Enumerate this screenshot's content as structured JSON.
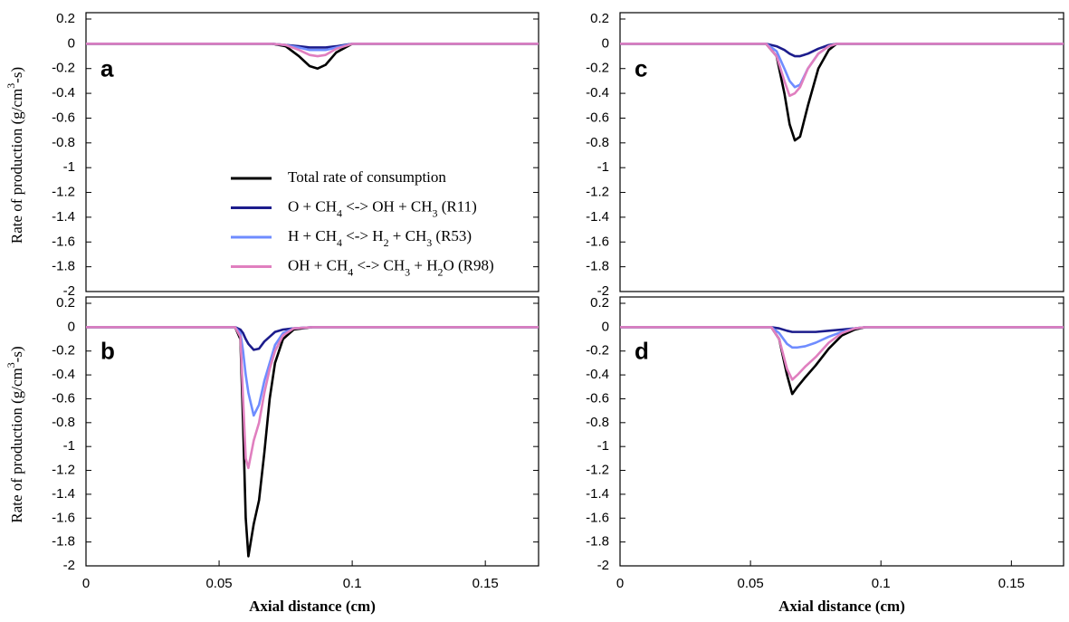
{
  "chart_data": [
    {
      "type": "line",
      "label": "a",
      "ylabel": "Rate of production (g/cm3-s)",
      "x": [
        0,
        0.07,
        0.075,
        0.08,
        0.084,
        0.087,
        0.09,
        0.094,
        0.1,
        0.17
      ],
      "series": [
        {
          "name": "Total rate of consumption",
          "color": "#000000",
          "values": [
            0,
            0,
            -0.02,
            -0.1,
            -0.18,
            -0.2,
            -0.17,
            -0.07,
            0,
            0
          ]
        },
        {
          "name": "O + CH4 <-> OH + CH3 (R11)",
          "color": "#1c1c8c",
          "values": [
            0,
            0,
            -0.01,
            -0.02,
            -0.03,
            -0.03,
            -0.03,
            -0.02,
            0,
            0
          ]
        },
        {
          "name": "H + CH4 <-> H2 + CH3 (R53)",
          "color": "#6f8cff",
          "values": [
            0,
            0,
            -0.01,
            -0.03,
            -0.05,
            -0.05,
            -0.05,
            -0.03,
            0,
            0
          ]
        },
        {
          "name": "OH + CH4 <-> CH3 + H2O (R98)",
          "color": "#e07fbf",
          "values": [
            0,
            0,
            -0.01,
            -0.05,
            -0.09,
            -0.1,
            -0.09,
            -0.04,
            0,
            0
          ]
        }
      ],
      "xlim": [
        0,
        0.17
      ],
      "ylim": [
        -2,
        0.2
      ],
      "yticks": [
        0.2,
        0,
        -0.2,
        -0.4,
        -0.6,
        -0.8,
        -1,
        -1.2,
        -1.4,
        -1.6,
        -1.8,
        -2
      ]
    },
    {
      "type": "line",
      "label": "b",
      "ylabel": "Rate of production (g/cm3-s)",
      "xlabel": "Axial distance (cm)",
      "x": [
        0,
        0.056,
        0.058,
        0.059,
        0.06,
        0.061,
        0.063,
        0.065,
        0.067,
        0.069,
        0.071,
        0.074,
        0.078,
        0.085,
        0.17
      ],
      "series": [
        {
          "color": "#000000",
          "values": [
            0,
            0,
            -0.1,
            -0.8,
            -1.6,
            -1.92,
            -1.65,
            -1.45,
            -1.05,
            -0.6,
            -0.3,
            -0.1,
            -0.02,
            0,
            0
          ]
        },
        {
          "color": "#1c1c8c",
          "values": [
            0,
            0,
            -0.02,
            -0.05,
            -0.1,
            -0.14,
            -0.19,
            -0.18,
            -0.12,
            -0.08,
            -0.04,
            -0.02,
            -0.01,
            0,
            0
          ]
        },
        {
          "color": "#6f8cff",
          "values": [
            0,
            0,
            -0.05,
            -0.2,
            -0.4,
            -0.55,
            -0.74,
            -0.65,
            -0.45,
            -0.3,
            -0.15,
            -0.05,
            -0.01,
            0,
            0
          ]
        },
        {
          "color": "#e07fbf",
          "values": [
            0,
            0,
            -0.08,
            -0.6,
            -1.1,
            -1.18,
            -0.95,
            -0.8,
            -0.55,
            -0.35,
            -0.2,
            -0.07,
            -0.01,
            0,
            0
          ]
        }
      ],
      "xlim": [
        0,
        0.17
      ],
      "ylim": [
        -2,
        0.2
      ],
      "xticks": [
        0,
        0.05,
        0.1,
        0.15
      ],
      "yticks": [
        0.2,
        0,
        -0.2,
        -0.4,
        -0.6,
        -0.8,
        -1,
        -1.2,
        -1.4,
        -1.6,
        -1.8,
        -2
      ]
    },
    {
      "type": "line",
      "label": "c",
      "x": [
        0,
        0.056,
        0.06,
        0.063,
        0.065,
        0.067,
        0.069,
        0.072,
        0.076,
        0.08,
        0.083,
        0.17
      ],
      "series": [
        {
          "color": "#000000",
          "values": [
            0,
            0,
            -0.1,
            -0.4,
            -0.65,
            -0.78,
            -0.75,
            -0.5,
            -0.2,
            -0.05,
            0,
            0
          ]
        },
        {
          "color": "#1c1c8c",
          "values": [
            0,
            0,
            -0.02,
            -0.05,
            -0.08,
            -0.1,
            -0.1,
            -0.08,
            -0.04,
            -0.01,
            0,
            0
          ]
        },
        {
          "color": "#6f8cff",
          "values": [
            0,
            0,
            -0.06,
            -0.2,
            -0.3,
            -0.35,
            -0.33,
            -0.2,
            -0.08,
            -0.02,
            0,
            0
          ]
        },
        {
          "color": "#e07fbf",
          "values": [
            0,
            0,
            -0.1,
            -0.3,
            -0.42,
            -0.4,
            -0.35,
            -0.2,
            -0.08,
            -0.02,
            0,
            0
          ]
        }
      ],
      "xlim": [
        0,
        0.17
      ],
      "ylim": [
        -2,
        0.2
      ],
      "yticks": [
        0.2,
        0,
        -0.2,
        -0.4,
        -0.6,
        -0.8,
        -1,
        -1.2,
        -1.4,
        -1.6,
        -1.8,
        -2
      ]
    },
    {
      "type": "line",
      "label": "d",
      "xlabel": "Axial distance (cm)",
      "x": [
        0,
        0.058,
        0.061,
        0.064,
        0.066,
        0.068,
        0.071,
        0.075,
        0.08,
        0.085,
        0.09,
        0.094,
        0.17
      ],
      "series": [
        {
          "color": "#000000",
          "values": [
            0,
            0,
            -0.1,
            -0.4,
            -0.56,
            -0.5,
            -0.42,
            -0.32,
            -0.18,
            -0.07,
            -0.02,
            0,
            0
          ]
        },
        {
          "color": "#1c1c8c",
          "values": [
            0,
            0,
            -0.01,
            -0.03,
            -0.04,
            -0.04,
            -0.04,
            -0.04,
            -0.03,
            -0.02,
            -0.01,
            0,
            0
          ]
        },
        {
          "color": "#6f8cff",
          "values": [
            0,
            0,
            -0.05,
            -0.14,
            -0.17,
            -0.17,
            -0.16,
            -0.13,
            -0.08,
            -0.04,
            -0.01,
            0,
            0
          ]
        },
        {
          "color": "#e07fbf",
          "values": [
            0,
            0,
            -0.1,
            -0.35,
            -0.44,
            -0.4,
            -0.33,
            -0.25,
            -0.13,
            -0.05,
            -0.01,
            0,
            0
          ]
        }
      ],
      "xlim": [
        0,
        0.17
      ],
      "ylim": [
        -2,
        0.2
      ],
      "xticks": [
        0,
        0.05,
        0.1,
        0.15
      ],
      "yticks": [
        0.2,
        0,
        -0.2,
        -0.4,
        -0.6,
        -0.8,
        -1,
        -1.2,
        -1.4,
        -1.6,
        -1.8,
        -2
      ]
    }
  ]
}
